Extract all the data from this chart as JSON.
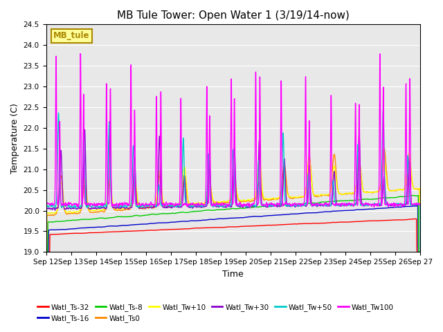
{
  "title": "MB Tule Tower: Open Water 1 (3/19/14-now)",
  "xlabel": "Time",
  "ylabel": "Temperature (C)",
  "ylim": [
    19.0,
    24.5
  ],
  "yticks": [
    19.0,
    19.5,
    20.0,
    20.5,
    21.0,
    21.5,
    22.0,
    22.5,
    23.0,
    23.5,
    24.0,
    24.5
  ],
  "xtick_labels": [
    "Sep 12",
    "Sep 13",
    "Sep 14",
    "Sep 15",
    "Sep 16",
    "Sep 17",
    "Sep 18",
    "Sep 19",
    "Sep 20",
    "Sep 21",
    "Sep 22",
    "Sep 23",
    "Sep 24",
    "Sep 25",
    "Sep 26",
    "Sep 27"
  ],
  "series": {
    "Watl_Ts-32": {
      "color": "#ff0000",
      "lw": 1.0
    },
    "Watl_Ts-16": {
      "color": "#0000cc",
      "lw": 1.0
    },
    "Watl_Ts-8": {
      "color": "#00cc00",
      "lw": 1.0
    },
    "Watl_Ts0": {
      "color": "#ff8800",
      "lw": 1.0
    },
    "Watl_Tw+10": {
      "color": "#ffff00",
      "lw": 1.0
    },
    "Watl_Tw+30": {
      "color": "#8800cc",
      "lw": 1.0
    },
    "Watl_Tw+50": {
      "color": "#00cccc",
      "lw": 1.0
    },
    "Watl_Tw100": {
      "color": "#ff00ff",
      "lw": 1.0
    }
  },
  "legend_label": "MB_tule",
  "legend_bg": "#ffff99",
  "legend_border": "#aa8800",
  "bg_color": "#e8e8e8",
  "title_fontsize": 11,
  "axis_fontsize": 9,
  "tick_fontsize": 7.5
}
